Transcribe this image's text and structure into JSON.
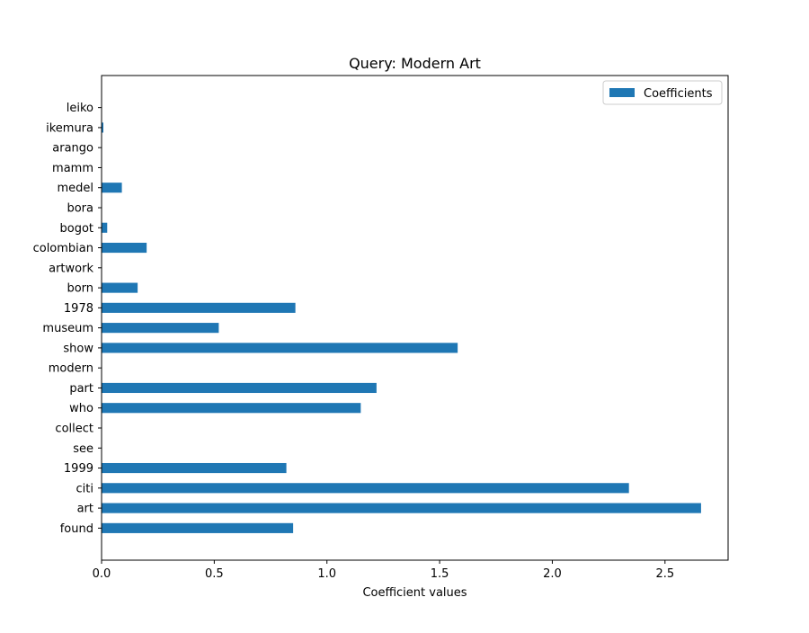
{
  "chart_data": {
    "type": "bar",
    "orientation": "horizontal",
    "title": "Query: Modern Art",
    "xlabel": "Coefficient values",
    "ylabel": "",
    "xlim": [
      0,
      2.78
    ],
    "x_ticks": [
      0.0,
      0.5,
      1.0,
      1.5,
      2.0,
      2.5
    ],
    "x_tick_labels": [
      "0.0",
      "0.5",
      "1.0",
      "1.5",
      "2.0",
      "2.5"
    ],
    "grid": false,
    "legend": {
      "position": "top-right",
      "entries": [
        "Coefficients"
      ]
    },
    "color": "#1f77b4",
    "categories": [
      "found",
      "art",
      "citi",
      "1999",
      "see",
      "collect",
      "who",
      "part",
      "modern",
      "show",
      "museum",
      "1978",
      "born",
      "artwork",
      "colombian",
      "bogot",
      "bora",
      "medel",
      "mamm",
      "arango",
      "ikemura",
      "leiko"
    ],
    "series": [
      {
        "name": "Coefficients",
        "values": [
          0.85,
          2.66,
          2.34,
          0.82,
          0.0,
          0.0,
          1.15,
          1.22,
          0.0,
          1.58,
          0.52,
          0.86,
          0.16,
          0.0,
          0.2,
          0.025,
          0.0,
          0.09,
          0.0,
          0.0,
          0.008,
          0.0
        ]
      }
    ]
  }
}
